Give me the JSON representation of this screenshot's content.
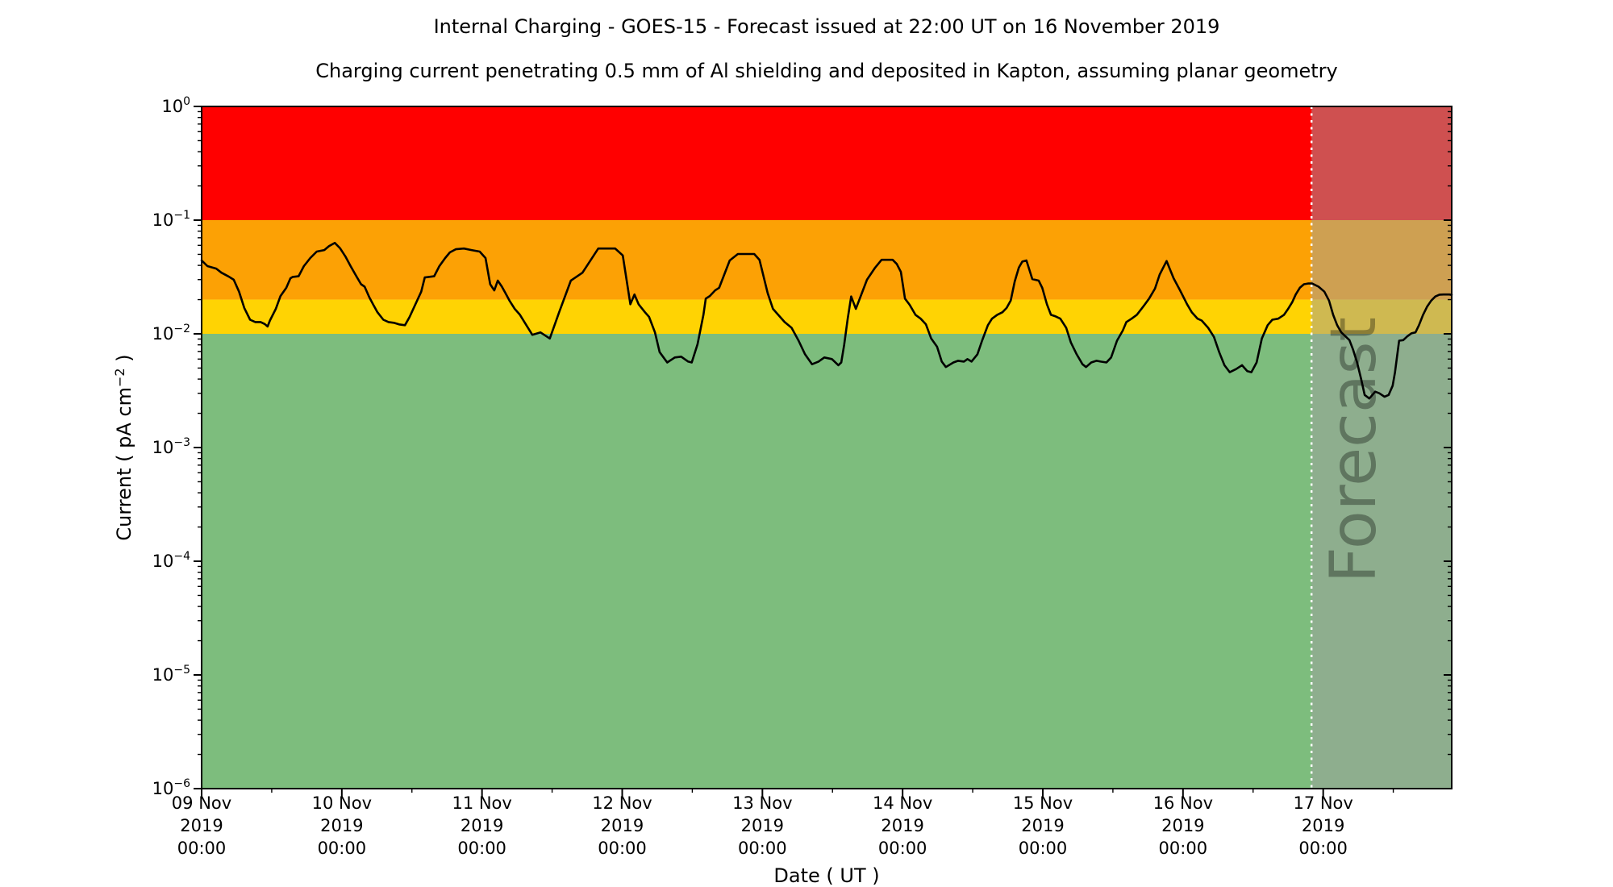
{
  "title": "Internal Charging - GOES-15 - Forecast issued at 22:00 UT on 16 November 2019",
  "subtitle": "Charging current penetrating 0.5 mm of Al shielding and deposited in Kapton, assuming planar geometry",
  "chart_data": {
    "type": "line",
    "title": "Internal Charging - GOES-15 - Forecast issued at 22:00 UT on 16 November 2019",
    "subtitle": "Charging current penetrating 0.5 mm of Al shielding and deposited in Kapton, assuming planar geometry",
    "xlabel": "Date ( UT )",
    "ylabel": "Current ( pA cm−2 )",
    "ylabel_parts": {
      "pre": "Current ( pA cm",
      "sup": "−2",
      "post": " )"
    },
    "y_scale": "log",
    "ylim": [
      1e-06,
      1
    ],
    "y_tick_exponents": [
      "0",
      "−1",
      "−2",
      "−3",
      "−4",
      "−5",
      "−6"
    ],
    "x_start": "09 Nov 2019 00:00",
    "x_range_hours": [
      0,
      214
    ],
    "x_minor_tick_every_hours": 12,
    "x_ticks": [
      {
        "t": 0,
        "day": "09 Nov",
        "year": "2019",
        "time": "00:00"
      },
      {
        "t": 24,
        "day": "10 Nov",
        "year": "2019",
        "time": "00:00"
      },
      {
        "t": 48,
        "day": "11 Nov",
        "year": "2019",
        "time": "00:00"
      },
      {
        "t": 72,
        "day": "12 Nov",
        "year": "2019",
        "time": "00:00"
      },
      {
        "t": 96,
        "day": "13 Nov",
        "year": "2019",
        "time": "00:00"
      },
      {
        "t": 120,
        "day": "14 Nov",
        "year": "2019",
        "time": "00:00"
      },
      {
        "t": 144,
        "day": "15 Nov",
        "year": "2019",
        "time": "00:00"
      },
      {
        "t": 168,
        "day": "16 Nov",
        "year": "2019",
        "time": "00:00"
      },
      {
        "t": 192,
        "day": "17 Nov",
        "year": "2019",
        "time": "00:00"
      }
    ],
    "bands": [
      {
        "name": "red",
        "from": 0.1,
        "to": 1.0,
        "color": "#ff0000"
      },
      {
        "name": "orange",
        "from": 0.02,
        "to": 0.1,
        "color": "#fca105"
      },
      {
        "name": "yellow",
        "from": 0.01,
        "to": 0.02,
        "color": "#ffd303"
      },
      {
        "name": "green",
        "from": 1e-06,
        "to": 0.01,
        "color": "#7dbd7d"
      }
    ],
    "forecast": {
      "label": "Forecast",
      "start_hours": 190,
      "start": "16 Nov 2019 22:00",
      "overlay_color": "rgba(160,160,160,0.5)",
      "divider_color": "#ffffff",
      "watermark_color": "#404040",
      "watermark_opacity": 0.32
    },
    "series": [
      {
        "name": "charging-current",
        "color": "#000000",
        "points": [
          [
            0,
            0.0442
          ],
          [
            1,
            0.0394
          ],
          [
            2.5,
            0.0375
          ],
          [
            3.4,
            0.0345
          ],
          [
            4.6,
            0.032
          ],
          [
            5.5,
            0.0299
          ],
          [
            6.4,
            0.0235
          ],
          [
            7.3,
            0.0169
          ],
          [
            8.3,
            0.0133
          ],
          [
            9.2,
            0.0127
          ],
          [
            10.1,
            0.0127
          ],
          [
            10.8,
            0.0122
          ],
          [
            11.3,
            0.0116
          ],
          [
            11.7,
            0.0131
          ],
          [
            12.7,
            0.0166
          ],
          [
            13.5,
            0.0215
          ],
          [
            14.5,
            0.0254
          ],
          [
            15.2,
            0.0308
          ],
          [
            15.6,
            0.0317
          ],
          [
            16.6,
            0.0321
          ],
          [
            17.5,
            0.0394
          ],
          [
            18.6,
            0.0464
          ],
          [
            19.7,
            0.0529
          ],
          [
            21,
            0.0546
          ],
          [
            21.8,
            0.0591
          ],
          [
            22.8,
            0.0631
          ],
          [
            23.7,
            0.0566
          ],
          [
            24.6,
            0.048
          ],
          [
            25.5,
            0.0394
          ],
          [
            26.5,
            0.0321
          ],
          [
            27.3,
            0.0273
          ],
          [
            27.9,
            0.026
          ],
          [
            28.7,
            0.021
          ],
          [
            29.4,
            0.018
          ],
          [
            30.1,
            0.0155
          ],
          [
            31.1,
            0.0133
          ],
          [
            32,
            0.0127
          ],
          [
            32.9,
            0.0125
          ],
          [
            33.8,
            0.0121
          ],
          [
            34.8,
            0.0119
          ],
          [
            35.6,
            0.0141
          ],
          [
            36.6,
            0.0182
          ],
          [
            37.6,
            0.0235
          ],
          [
            38.2,
            0.0313
          ],
          [
            38.9,
            0.0317
          ],
          [
            39.8,
            0.0321
          ],
          [
            40.7,
            0.0394
          ],
          [
            41.7,
            0.0464
          ],
          [
            42.5,
            0.052
          ],
          [
            43.5,
            0.0555
          ],
          [
            44.9,
            0.0563
          ],
          [
            46.2,
            0.0546
          ],
          [
            47.6,
            0.0529
          ],
          [
            48.6,
            0.0464
          ],
          [
            49.4,
            0.0273
          ],
          [
            50.1,
            0.0241
          ],
          [
            50.7,
            0.0294
          ],
          [
            51.4,
            0.026
          ],
          [
            52,
            0.0229
          ],
          [
            52.7,
            0.0196
          ],
          [
            53.6,
            0.0166
          ],
          [
            54.5,
            0.0147
          ],
          [
            56.6,
            0.0098
          ],
          [
            58,
            0.0103
          ],
          [
            59.6,
            0.0091
          ],
          [
            61.2,
            0.0155
          ],
          [
            63.2,
            0.0294
          ],
          [
            63.8,
            0.0308
          ],
          [
            65.2,
            0.0345
          ],
          [
            67.9,
            0.0563
          ],
          [
            70.8,
            0.0563
          ],
          [
            72.1,
            0.0489
          ],
          [
            73.4,
            0.0182
          ],
          [
            74.1,
            0.0222
          ],
          [
            74.8,
            0.0182
          ],
          [
            75.9,
            0.0155
          ],
          [
            76.6,
            0.0141
          ],
          [
            77.6,
            0.0103
          ],
          [
            78.4,
            0.0069
          ],
          [
            79.7,
            0.0056
          ],
          [
            81,
            0.0062
          ],
          [
            82.1,
            0.0063
          ],
          [
            83.3,
            0.0057
          ],
          [
            83.9,
            0.0056
          ],
          [
            84.9,
            0.0081
          ],
          [
            85.9,
            0.0147
          ],
          [
            86.3,
            0.0204
          ],
          [
            87,
            0.0215
          ],
          [
            87.9,
            0.0241
          ],
          [
            88.6,
            0.0254
          ],
          [
            90.4,
            0.0442
          ],
          [
            91.8,
            0.0504
          ],
          [
            94.6,
            0.0504
          ],
          [
            95.5,
            0.0448
          ],
          [
            96.9,
            0.0229
          ],
          [
            97.8,
            0.0166
          ],
          [
            98.7,
            0.0147
          ],
          [
            99.8,
            0.0127
          ],
          [
            101,
            0.0113
          ],
          [
            102.2,
            0.0087
          ],
          [
            103.3,
            0.0066
          ],
          [
            104.5,
            0.0054
          ],
          [
            105.6,
            0.0057
          ],
          [
            106.6,
            0.0062
          ],
          [
            107.9,
            0.006
          ],
          [
            109,
            0.0053
          ],
          [
            109.5,
            0.0056
          ],
          [
            110,
            0.008
          ],
          [
            110.6,
            0.0136
          ],
          [
            111.2,
            0.0213
          ],
          [
            112,
            0.0166
          ],
          [
            113.9,
            0.0299
          ],
          [
            115.3,
            0.0382
          ],
          [
            116.4,
            0.0448
          ],
          [
            118.3,
            0.0448
          ],
          [
            119,
            0.0412
          ],
          [
            119.7,
            0.0351
          ],
          [
            120.4,
            0.0204
          ],
          [
            121.2,
            0.018
          ],
          [
            122.2,
            0.0147
          ],
          [
            123.1,
            0.0136
          ],
          [
            124,
            0.0121
          ],
          [
            124.9,
            0.0091
          ],
          [
            125.9,
            0.0077
          ],
          [
            126.7,
            0.0057
          ],
          [
            127.4,
            0.0051
          ],
          [
            128.7,
            0.0056
          ],
          [
            129.5,
            0.0058
          ],
          [
            130.5,
            0.0057
          ],
          [
            131.1,
            0.006
          ],
          [
            131.8,
            0.0057
          ],
          [
            132.8,
            0.0066
          ],
          [
            133.6,
            0.0087
          ],
          [
            134.6,
            0.0119
          ],
          [
            135.3,
            0.0136
          ],
          [
            136.2,
            0.0147
          ],
          [
            137.1,
            0.0155
          ],
          [
            137.8,
            0.0169
          ],
          [
            138.5,
            0.0196
          ],
          [
            139.2,
            0.0289
          ],
          [
            139.9,
            0.0382
          ],
          [
            140.5,
            0.0432
          ],
          [
            141.2,
            0.0442
          ],
          [
            142.2,
            0.0303
          ],
          [
            143.3,
            0.0294
          ],
          [
            143.9,
            0.0254
          ],
          [
            144.7,
            0.0182
          ],
          [
            145.4,
            0.0147
          ],
          [
            146.1,
            0.0143
          ],
          [
            147,
            0.0136
          ],
          [
            148,
            0.0113
          ],
          [
            148.8,
            0.0084
          ],
          [
            149.8,
            0.0066
          ],
          [
            150.8,
            0.0054
          ],
          [
            151.4,
            0.0051
          ],
          [
            152.3,
            0.0056
          ],
          [
            153.2,
            0.0058
          ],
          [
            153.9,
            0.0057
          ],
          [
            154.9,
            0.0056
          ],
          [
            155.7,
            0.0062
          ],
          [
            156.7,
            0.0087
          ],
          [
            157.7,
            0.0107
          ],
          [
            158.3,
            0.0127
          ],
          [
            159.2,
            0.0136
          ],
          [
            160.1,
            0.0147
          ],
          [
            161.2,
            0.0174
          ],
          [
            162.2,
            0.0204
          ],
          [
            163.2,
            0.025
          ],
          [
            164,
            0.0332
          ],
          [
            165.2,
            0.0437
          ],
          [
            166.4,
            0.0308
          ],
          [
            167.5,
            0.0241
          ],
          [
            168.7,
            0.0182
          ],
          [
            169.5,
            0.0155
          ],
          [
            170.5,
            0.0136
          ],
          [
            171.2,
            0.0131
          ],
          [
            172.3,
            0.0113
          ],
          [
            173.3,
            0.0094
          ],
          [
            174.2,
            0.0069
          ],
          [
            175.1,
            0.0053
          ],
          [
            176,
            0.0046
          ],
          [
            177.1,
            0.0049
          ],
          [
            178.1,
            0.0053
          ],
          [
            179,
            0.0047
          ],
          [
            179.7,
            0.0046
          ],
          [
            180.6,
            0.0056
          ],
          [
            181.5,
            0.0091
          ],
          [
            182.5,
            0.0119
          ],
          [
            183.3,
            0.0133
          ],
          [
            184.3,
            0.0136
          ],
          [
            185.3,
            0.0147
          ],
          [
            186,
            0.0166
          ],
          [
            186.7,
            0.019
          ],
          [
            187.3,
            0.0222
          ],
          [
            188,
            0.0254
          ],
          [
            188.7,
            0.0273
          ],
          [
            189.4,
            0.0277
          ],
          [
            190.1,
            0.0277
          ],
          [
            191.2,
            0.026
          ],
          [
            192.2,
            0.0235
          ],
          [
            193,
            0.0196
          ],
          [
            193.7,
            0.0147
          ],
          [
            194.4,
            0.0119
          ],
          [
            195.1,
            0.0103
          ],
          [
            195.8,
            0.0095
          ],
          [
            196.5,
            0.0088
          ],
          [
            197.1,
            0.0073
          ],
          [
            197.8,
            0.0056
          ],
          [
            198.5,
            0.004
          ],
          [
            199.1,
            0.0029
          ],
          [
            199.9,
            0.0027
          ],
          [
            200.9,
            0.0031
          ],
          [
            201.6,
            0.003
          ],
          [
            202.5,
            0.0028
          ],
          [
            203.2,
            0.0029
          ],
          [
            203.9,
            0.0035
          ],
          [
            204.3,
            0.0046
          ],
          [
            205,
            0.0087
          ],
          [
            205.7,
            0.0088
          ],
          [
            206.4,
            0.0095
          ],
          [
            207.1,
            0.0101
          ],
          [
            207.8,
            0.0103
          ],
          [
            208.4,
            0.0119
          ],
          [
            209.1,
            0.0147
          ],
          [
            209.8,
            0.0174
          ],
          [
            210.5,
            0.0196
          ],
          [
            211.2,
            0.0213
          ],
          [
            211.9,
            0.0221
          ],
          [
            212.6,
            0.0222
          ],
          [
            213.6,
            0.0222
          ],
          [
            214,
            0.022
          ]
        ]
      }
    ]
  }
}
